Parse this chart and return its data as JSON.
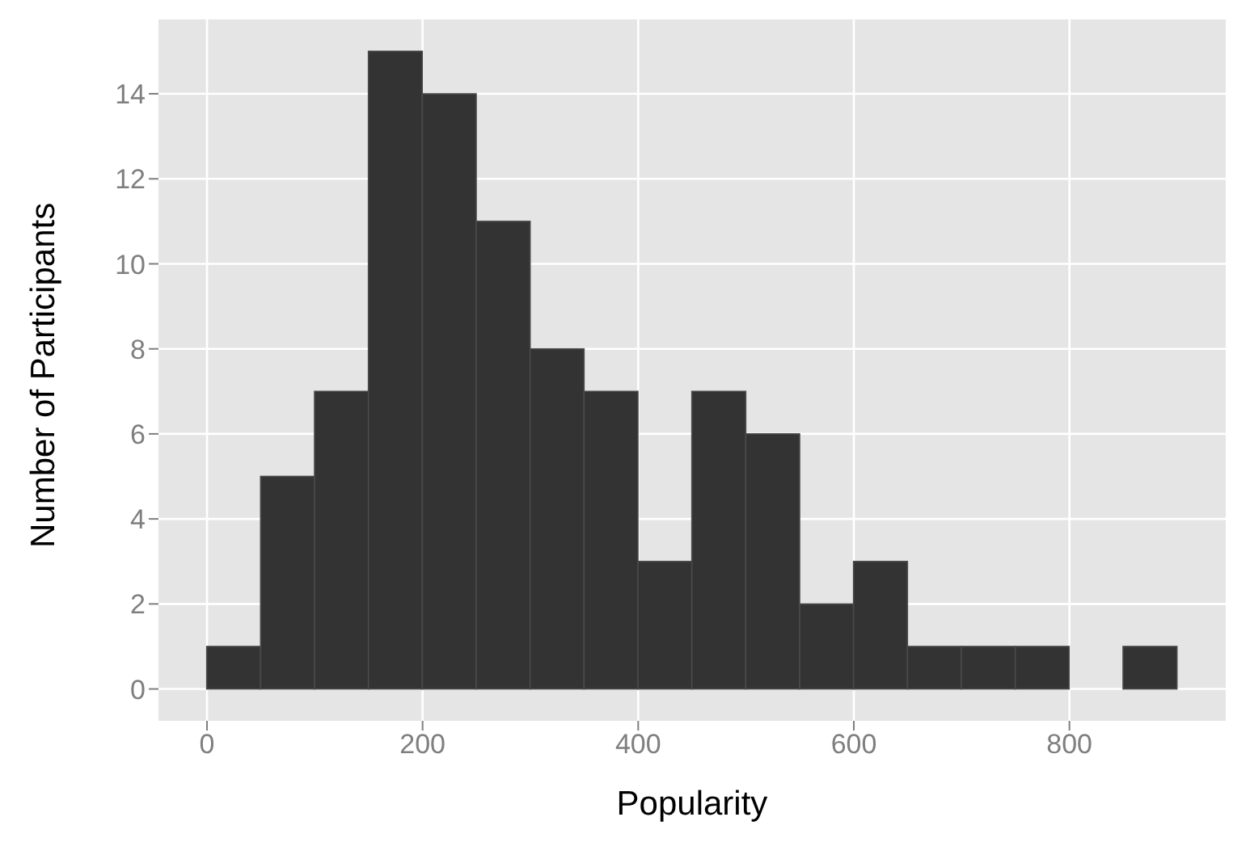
{
  "chart_data": {
    "type": "histogram",
    "xlabel": "Popularity",
    "ylabel": "Number of Participants",
    "bins": [
      0,
      50,
      100,
      150,
      200,
      250,
      300,
      350,
      400,
      450,
      500,
      550,
      600,
      650,
      700,
      750,
      800,
      850,
      900
    ],
    "values": [
      1,
      5,
      7,
      15,
      14,
      11,
      8,
      7,
      3,
      7,
      6,
      2,
      3,
      1,
      1,
      1,
      0,
      1
    ],
    "color": "#333333",
    "xlim": [
      -45,
      945
    ],
    "xticks": [
      0,
      200,
      400,
      600,
      800
    ],
    "ylim": [
      -0.75,
      15.75
    ],
    "yticks": [
      0,
      2,
      4,
      6,
      8,
      10,
      12,
      14
    ],
    "grid": true
  }
}
